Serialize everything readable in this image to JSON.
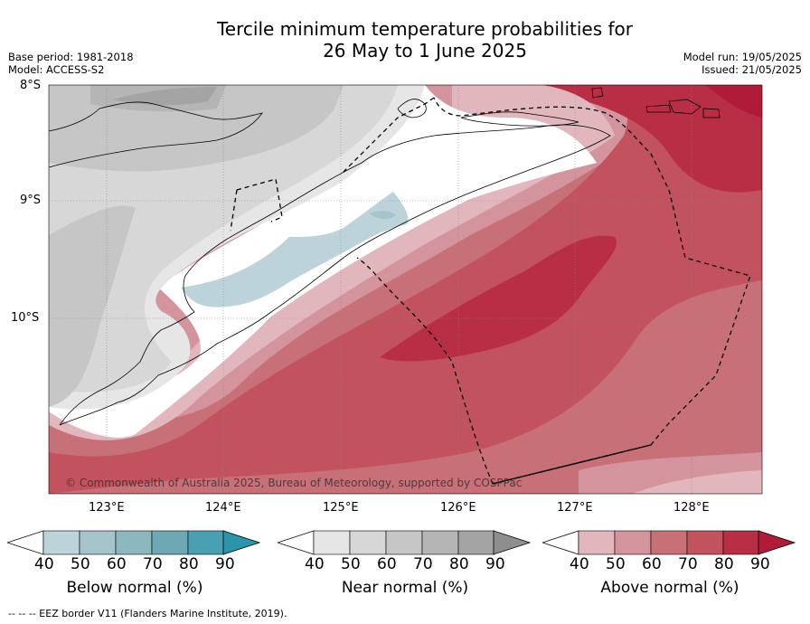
{
  "title": {
    "line1": "Tercile minimum temperature probabilities for",
    "line2": "26 May to 1 June 2025"
  },
  "meta": {
    "base_period": "Base period: 1981-2018",
    "model": "Model: ACCESS-S2",
    "model_run": "Model run: 19/05/2025",
    "issued": "Issued: 21/05/2025"
  },
  "axes": {
    "lat_labels": [
      "8°S",
      "9°S",
      "10°S"
    ],
    "lon_labels": [
      "123°E",
      "124°E",
      "125°E",
      "126°E",
      "127°E",
      "128°E"
    ]
  },
  "copyright": "© Commonwealth of Australia 2025, Bureau of Meteorology, supported by COSPPac",
  "legend": {
    "below": {
      "title": "Below normal (%)",
      "ticks": [
        "40",
        "50",
        "60",
        "70",
        "80",
        "90"
      ],
      "colors": [
        "#bcd3da",
        "#a5c4cb",
        "#8cb7bf",
        "#6fa8b5",
        "#49a0b3",
        "#2a96ac"
      ]
    },
    "near": {
      "title": "Near normal (%)",
      "ticks": [
        "40",
        "50",
        "60",
        "70",
        "80",
        "90"
      ],
      "colors": [
        "#e6e6e6",
        "#d7d7d7",
        "#c6c6c6",
        "#b5b5b5",
        "#a4a4a4",
        "#8e8e8e"
      ]
    },
    "above": {
      "title": "Above normal (%)",
      "ticks": [
        "40",
        "50",
        "60",
        "70",
        "80",
        "90"
      ],
      "colors": [
        "#e2b6bd",
        "#d4949d",
        "#c87078",
        "#c2525e",
        "#b82f45",
        "#b01c37"
      ]
    }
  },
  "footer": "--  --  -- EEZ border V11 (Flanders Marine Institute, 2019)."
}
